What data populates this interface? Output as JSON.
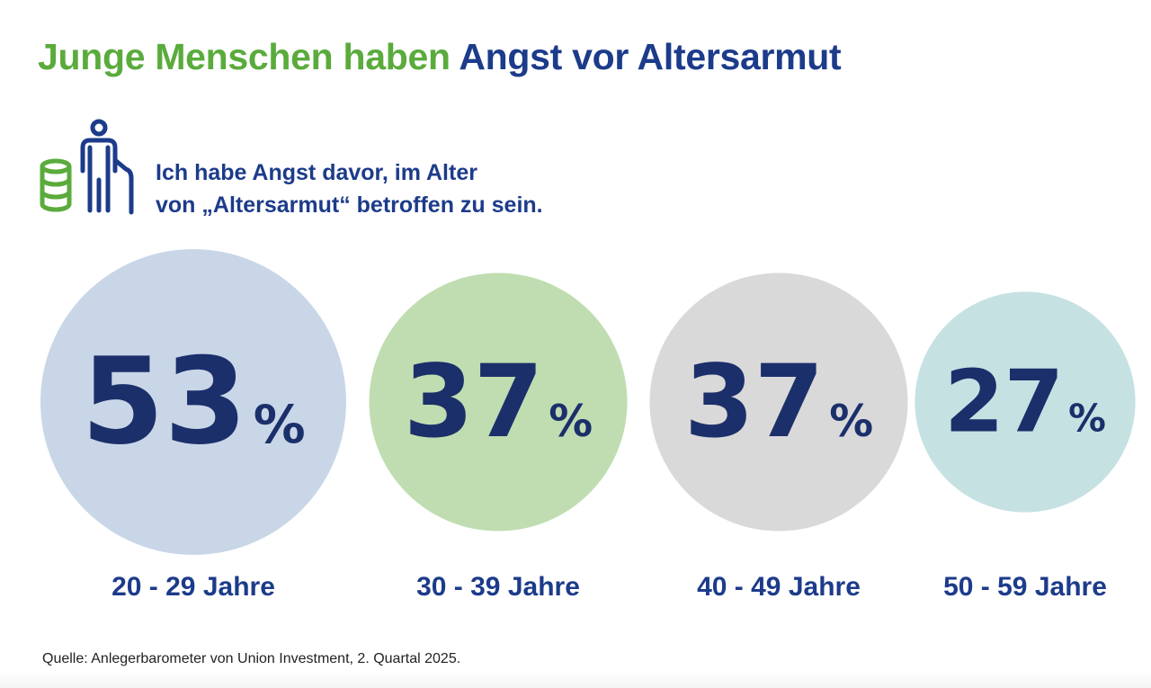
{
  "title": {
    "part1": "Junge Menschen haben",
    "part2": "Angst vor Altersarmut"
  },
  "icons": {
    "coins": "coin-stack-icon",
    "person": "elderly-person-with-cane-icon"
  },
  "statement": {
    "line1": "Ich habe Angst davor, im Alter",
    "line2": "von „Altersarmut“ betroffen zu sein."
  },
  "chart_data": {
    "type": "bubble",
    "title": "",
    "unit": "%",
    "categories": [
      "20 - 29 Jahre",
      "30 - 39 Jahre",
      "40 - 49 Jahre",
      "50 - 59 Jahre"
    ],
    "values": [
      53,
      37,
      37,
      27
    ],
    "colors": [
      "#c9d6e7",
      "#c0ddb1",
      "#d9d9d9",
      "#c6e1e2"
    ]
  },
  "source": "Quelle: Anlegerbarometer von Union Investment, 2. Quartal 2025.",
  "colors": {
    "green": "#5aab3c",
    "navy": "#1c3b8a",
    "value_text": "#1b2f6b"
  }
}
